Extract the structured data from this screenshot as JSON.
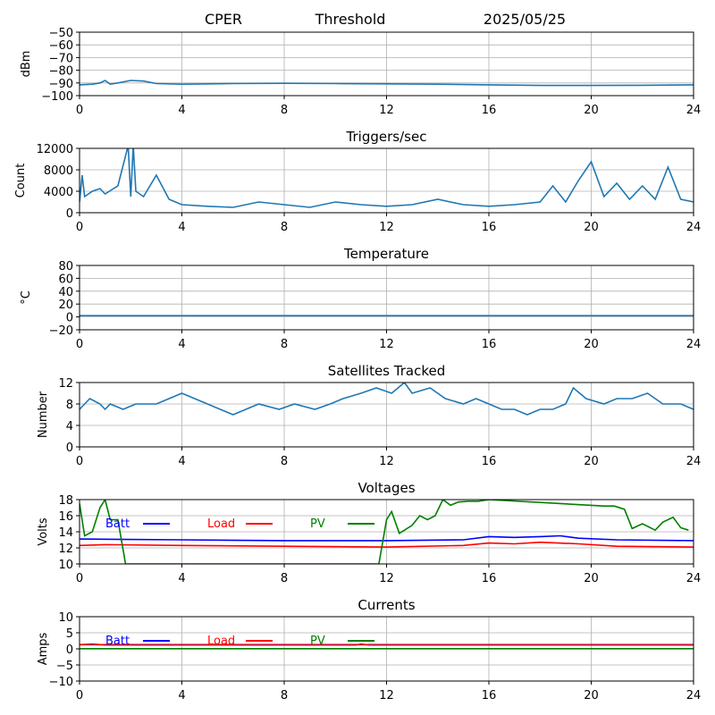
{
  "header": {
    "site": "CPER",
    "mode": "Threshold",
    "date": "2025/05/25"
  },
  "colors": {
    "series": "#1f77b4",
    "batt": "#0000ff",
    "load": "#ff0000",
    "pv": "#008000",
    "grid": "#b0b0b0"
  },
  "chart_data": [
    {
      "type": "line",
      "title": "",
      "xlabel": "",
      "ylabel": "dBm",
      "xlim": [
        0,
        24
      ],
      "xticks": [
        0,
        4,
        8,
        12,
        16,
        20,
        24
      ],
      "ylim": [
        -100,
        -50
      ],
      "yticks": [
        -100,
        -90,
        -80,
        -70,
        -60,
        -50
      ],
      "grid": true,
      "series": [
        {
          "name": "",
          "x": [
            0,
            0.5,
            0.8,
            1.0,
            1.2,
            1.5,
            2.0,
            2.5,
            3.0,
            4,
            6,
            8,
            10,
            12,
            14,
            16,
            18,
            20,
            22,
            24
          ],
          "y": [
            -91.5,
            -91,
            -90,
            -88,
            -91,
            -90,
            -88,
            -88.5,
            -90.5,
            -91,
            -90.5,
            -90.3,
            -90.5,
            -90.7,
            -91,
            -91.5,
            -92,
            -92,
            -91.8,
            -91.5
          ]
        }
      ]
    },
    {
      "type": "line",
      "title": "Triggers/sec",
      "xlabel": "",
      "ylabel": "Count",
      "xlim": [
        0,
        24
      ],
      "xticks": [
        0,
        4,
        8,
        12,
        16,
        20,
        24
      ],
      "ylim": [
        0,
        12000
      ],
      "yticks": [
        0,
        4000,
        8000,
        12000
      ],
      "grid": true,
      "series": [
        {
          "name": "",
          "x": [
            0,
            0.1,
            0.2,
            0.5,
            0.8,
            1.0,
            1.5,
            1.9,
            2.0,
            2.1,
            2.2,
            2.5,
            3.0,
            3.5,
            4,
            5,
            6,
            7,
            8,
            9,
            10,
            11,
            12,
            13,
            14,
            15,
            16,
            17,
            18,
            18.5,
            19,
            19.5,
            20,
            20.5,
            21,
            21.5,
            22,
            22.5,
            23,
            23.5,
            24
          ],
          "y": [
            2000,
            7000,
            3000,
            4000,
            4500,
            3500,
            5000,
            12500,
            3000,
            12500,
            4000,
            3000,
            7000,
            2500,
            1500,
            1200,
            1000,
            2000,
            1500,
            1000,
            2000,
            1500,
            1200,
            1500,
            2500,
            1500,
            1200,
            1500,
            2000,
            5000,
            2000,
            6000,
            9500,
            3000,
            5500,
            2500,
            5000,
            2500,
            8500,
            2500,
            2000
          ]
        }
      ]
    },
    {
      "type": "line",
      "title": "Temperature",
      "xlabel": "",
      "ylabel": "°C",
      "xlim": [
        0,
        24
      ],
      "xticks": [
        0,
        4,
        8,
        12,
        16,
        20,
        24
      ],
      "ylim": [
        -20,
        80
      ],
      "yticks": [
        -20,
        0,
        20,
        40,
        60,
        80
      ],
      "grid": true,
      "series": [
        {
          "name": "",
          "x": [
            0,
            24
          ],
          "y": [
            2,
            2
          ]
        }
      ]
    },
    {
      "type": "line",
      "title": "Satellites Tracked",
      "xlabel": "",
      "ylabel": "Number",
      "xlim": [
        0,
        24
      ],
      "xticks": [
        0,
        4,
        8,
        12,
        16,
        20,
        24
      ],
      "ylim": [
        0,
        12
      ],
      "yticks": [
        0,
        4,
        8,
        12
      ],
      "grid": true,
      "series": [
        {
          "name": "",
          "x": [
            0,
            0.2,
            0.4,
            0.8,
            1.0,
            1.2,
            1.7,
            2.2,
            3.0,
            3.5,
            4.0,
            4.5,
            5.0,
            5.5,
            6.0,
            6.5,
            7.0,
            7.8,
            8.4,
            9.2,
            9.8,
            10.3,
            11.0,
            11.6,
            12.2,
            12.7,
            13.0,
            13.7,
            14.3,
            15.0,
            15.5,
            16.0,
            16.5,
            17.0,
            17.5,
            18.0,
            18.5,
            19.0,
            19.3,
            19.8,
            20.5,
            21.0,
            21.6,
            22.2,
            22.8,
            23.5,
            24
          ],
          "y": [
            7,
            8,
            9,
            8,
            7,
            8,
            7,
            8,
            8,
            9,
            10,
            9,
            8,
            7,
            6,
            7,
            8,
            7,
            8,
            7,
            8,
            9,
            10,
            11,
            10,
            12,
            10,
            11,
            9,
            8,
            9,
            8,
            7,
            7,
            6,
            7,
            7,
            8,
            11,
            9,
            8,
            9,
            9,
            10,
            8,
            8,
            7
          ]
        }
      ]
    },
    {
      "type": "line",
      "title": "Voltages",
      "xlabel": "",
      "ylabel": "Volts",
      "xlim": [
        0,
        24
      ],
      "xticks": [
        0,
        4,
        8,
        12,
        16,
        20,
        24
      ],
      "ylim": [
        10,
        18
      ],
      "yticks": [
        10,
        12,
        14,
        16,
        18
      ],
      "grid": true,
      "legend": "top-left",
      "series": [
        {
          "name": "Batt",
          "x": [
            0,
            4,
            8,
            12,
            15,
            16,
            17,
            18,
            18.8,
            19.5,
            21,
            24
          ],
          "y": [
            13.1,
            13.0,
            12.9,
            12.9,
            13.0,
            13.4,
            13.3,
            13.4,
            13.5,
            13.2,
            13.0,
            12.9
          ]
        },
        {
          "name": "Load",
          "x": [
            0,
            1,
            4,
            8,
            12,
            15,
            16,
            17,
            18,
            19.5,
            21,
            24
          ],
          "y": [
            12.3,
            12.4,
            12.3,
            12.2,
            12.1,
            12.3,
            12.6,
            12.5,
            12.7,
            12.5,
            12.2,
            12.1
          ]
        },
        {
          "name": "PV",
          "x": [
            0,
            0.2,
            0.5,
            0.8,
            1.0,
            1.2,
            1.5,
            1.8,
            11.7,
            12.0,
            12.2,
            12.5,
            13.0,
            13.3,
            13.6,
            13.9,
            14.2,
            14.5,
            14.8,
            15.2,
            15.6,
            16.0,
            20.5,
            20.9,
            21.3,
            21.6,
            22.0,
            22.5,
            22.8,
            23.2,
            23.5,
            23.8
          ],
          "y": [
            17.5,
            13.5,
            14,
            17,
            18,
            15.5,
            15.5,
            10,
            10,
            15.5,
            16.5,
            13.8,
            14.8,
            16,
            15.5,
            16,
            18,
            17.3,
            17.7,
            17.8,
            17.8,
            18,
            17.2,
            17.2,
            16.8,
            14.4,
            15.0,
            14.2,
            15.2,
            15.8,
            14.5,
            14.2
          ]
        }
      ]
    },
    {
      "type": "line",
      "title": "Currents",
      "xlabel": "",
      "ylabel": "Amps",
      "xlim": [
        0,
        24
      ],
      "xticks": [
        0,
        4,
        8,
        12,
        16,
        20,
        24
      ],
      "ylim": [
        -10,
        10
      ],
      "yticks": [
        -10,
        -5,
        0,
        5,
        10
      ],
      "grid": true,
      "legend": "top-left",
      "series": [
        {
          "name": "Batt",
          "x": [
            0,
            24
          ],
          "y": [
            1.3,
            1.3
          ]
        },
        {
          "name": "Load",
          "x": [
            0,
            0.5,
            1,
            4,
            8,
            10.8,
            11,
            11.3,
            12,
            16,
            20,
            24
          ],
          "y": [
            1.3,
            1.5,
            1.2,
            1.2,
            1.2,
            1.2,
            1.5,
            1.2,
            1.2,
            1.2,
            1.2,
            1.2
          ]
        },
        {
          "name": "PV",
          "x": [
            0,
            24
          ],
          "y": [
            0.05,
            0.05
          ]
        }
      ]
    }
  ]
}
